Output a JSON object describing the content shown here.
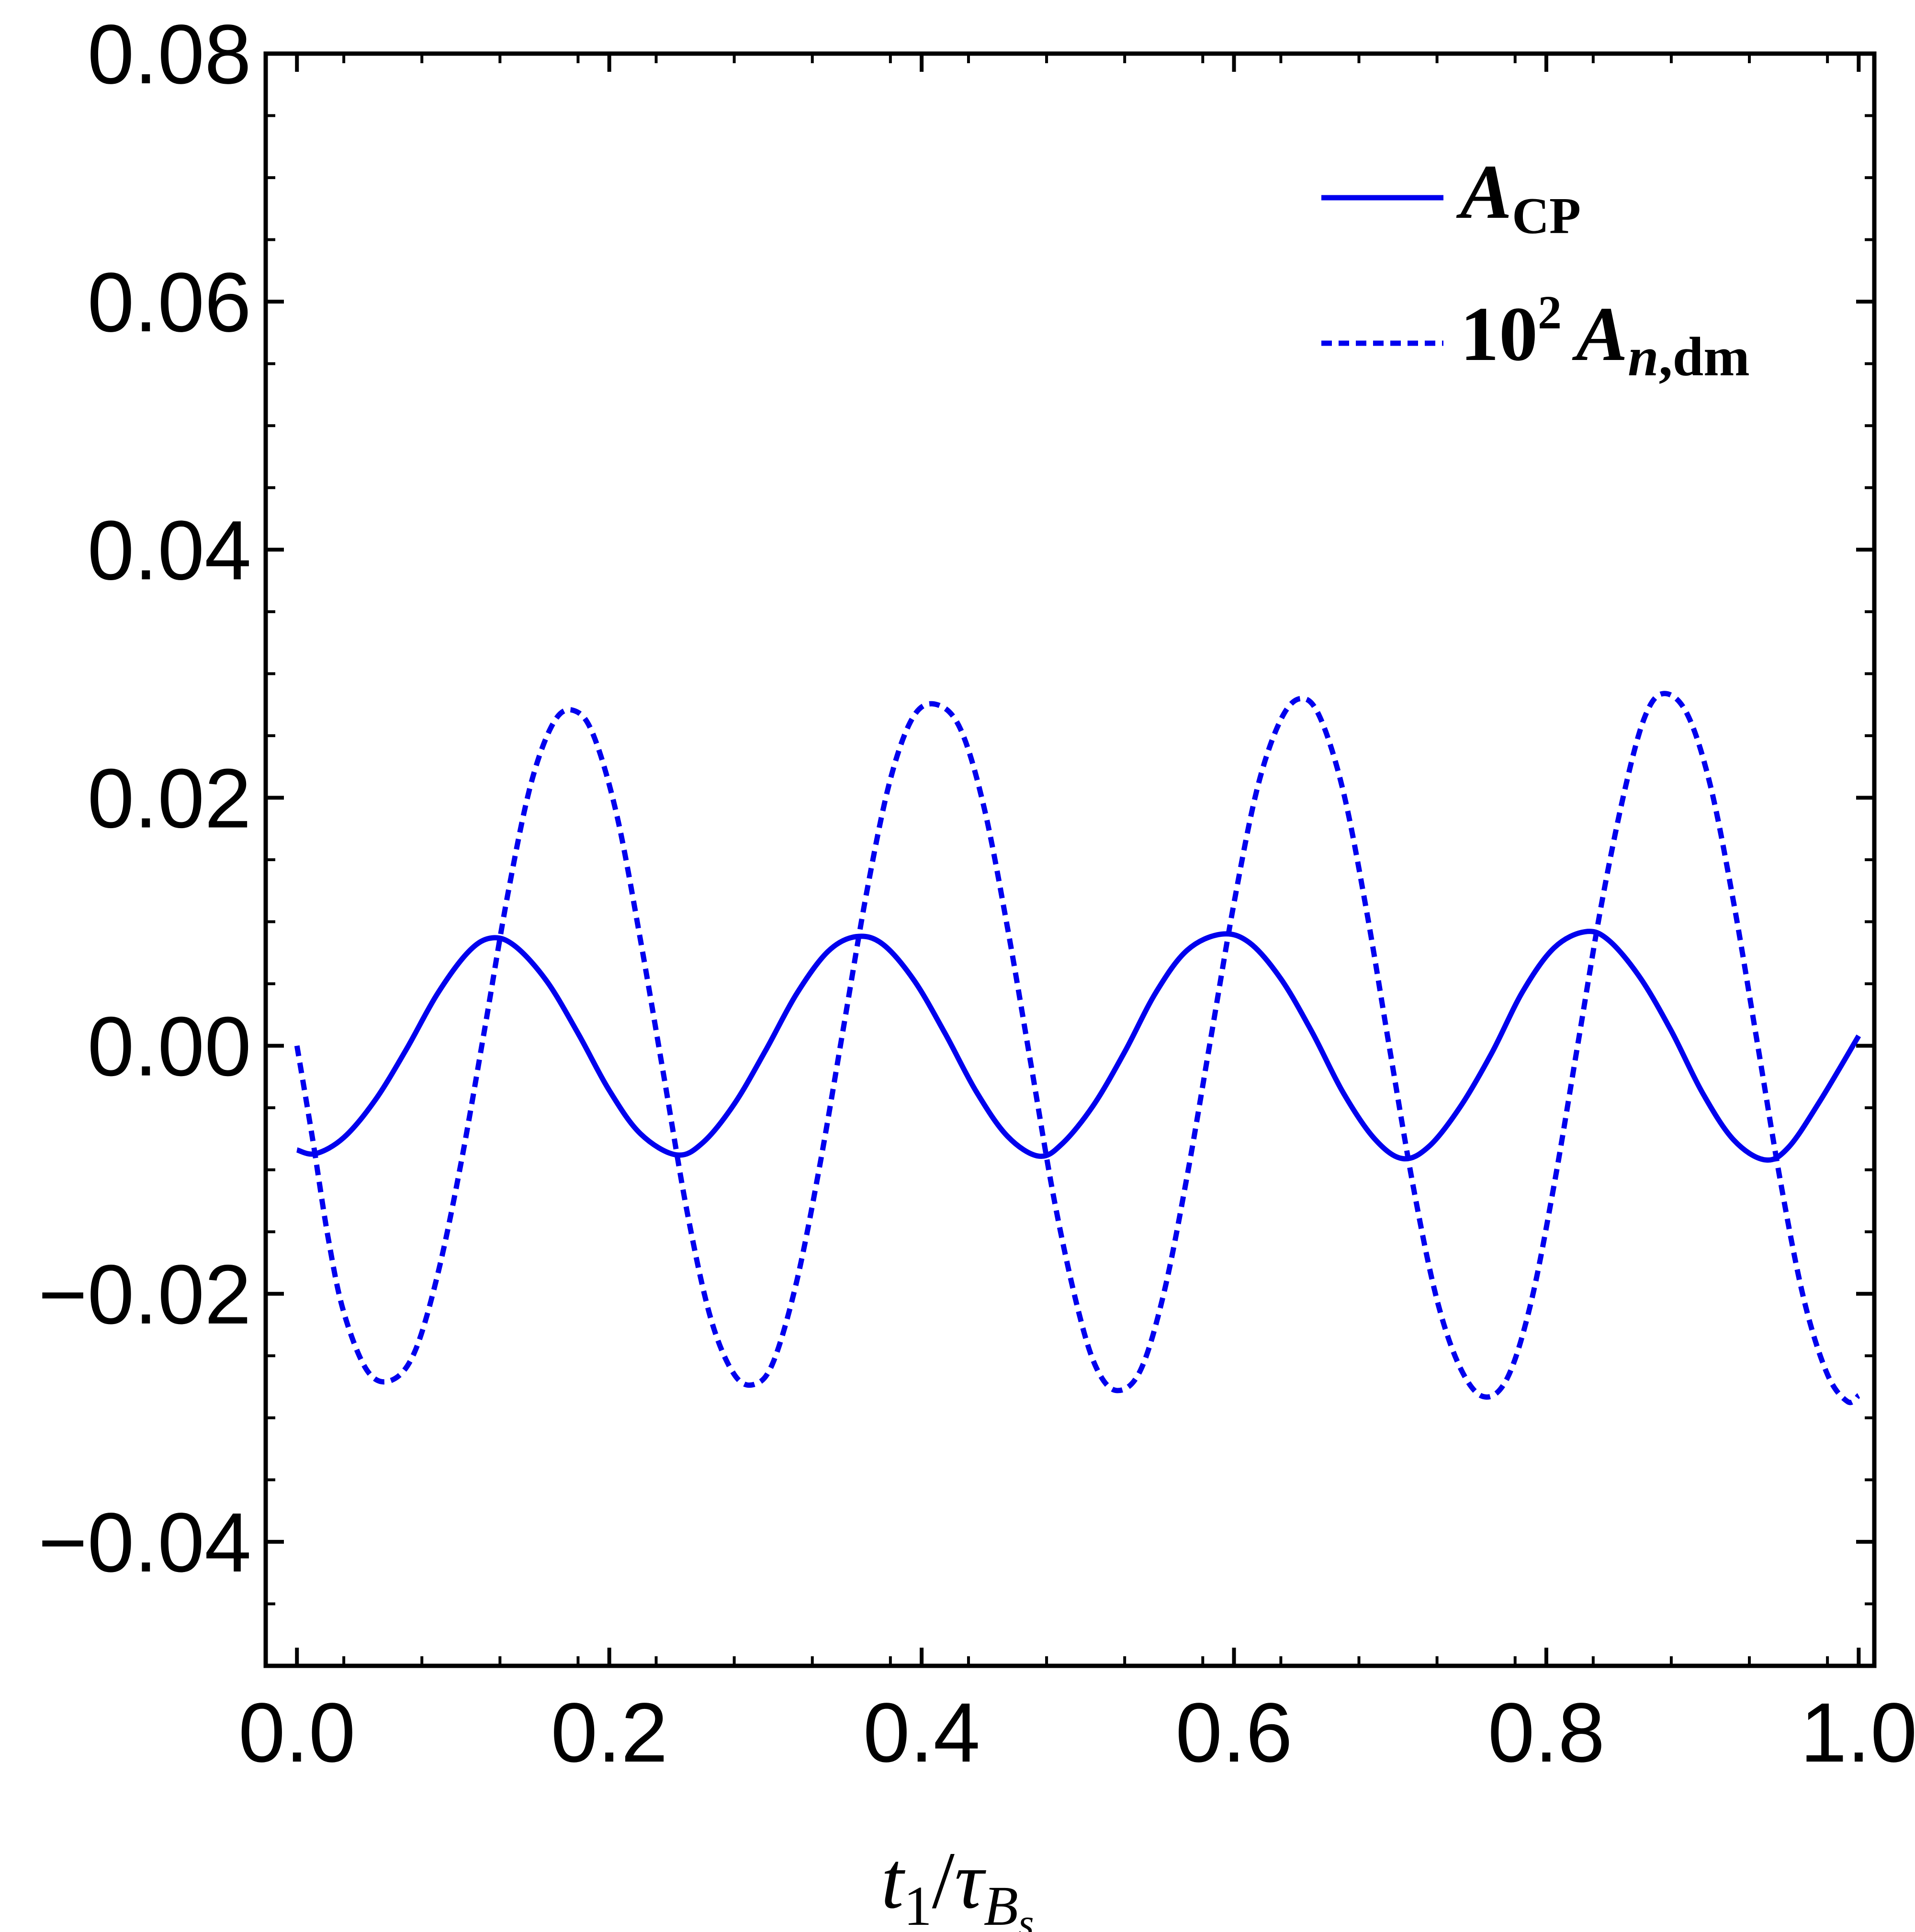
{
  "chart_data": {
    "type": "line",
    "title": "",
    "xlabel": {
      "base": "t",
      "sub1": "1",
      "slash": "/",
      "tau": "τ",
      "B": "B",
      "s": "s"
    },
    "ylabel": "",
    "xlim": [
      -0.02,
      1.01
    ],
    "ylim": [
      -0.05,
      0.08
    ],
    "x_ticks": [
      0.0,
      0.2,
      0.4,
      0.6,
      0.8,
      1.0
    ],
    "x_tick_labels": [
      "0.0",
      "0.2",
      "0.4",
      "0.6",
      "0.8",
      "1.0"
    ],
    "y_ticks": [
      -0.04,
      -0.02,
      0.0,
      0.02,
      0.04,
      0.06,
      0.08
    ],
    "y_tick_labels": [
      "−0.04",
      "−0.02",
      "0.00",
      "0.02",
      "0.04",
      "0.06",
      "0.08"
    ],
    "grid": false,
    "legend_position": "top-right",
    "color": "#0000ee",
    "series": [
      {
        "name": "A_CP",
        "legend": {
          "main": "A",
          "sub": "CP"
        },
        "style": "solid",
        "x": [
          0.0,
          0.012,
          0.03,
          0.05,
          0.07,
          0.09,
          0.11,
          0.125,
          0.14,
          0.16,
          0.18,
          0.2,
          0.22,
          0.243,
          0.26,
          0.28,
          0.3,
          0.32,
          0.34,
          0.358,
          0.375,
          0.395,
          0.415,
          0.435,
          0.455,
          0.475,
          0.49,
          0.51,
          0.53,
          0.55,
          0.57,
          0.592,
          0.61,
          0.63,
          0.65,
          0.67,
          0.69,
          0.708,
          0.725,
          0.745,
          0.765,
          0.785,
          0.805,
          0.825,
          0.84,
          0.86,
          0.88,
          0.9,
          0.92,
          0.94,
          0.955,
          0.975,
          1.0
        ],
        "y": [
          -0.0084,
          -0.0087,
          -0.0074,
          -0.0044,
          -0.0003,
          0.0042,
          0.0076,
          0.0087,
          0.008,
          0.0052,
          0.001,
          -0.0036,
          -0.0071,
          -0.0088,
          -0.0078,
          -0.0047,
          -0.0004,
          0.0042,
          0.0076,
          0.0088,
          0.0082,
          0.0053,
          0.001,
          -0.0037,
          -0.0073,
          -0.0089,
          -0.0079,
          -0.0048,
          -0.0005,
          0.0043,
          0.0077,
          0.009,
          0.0083,
          0.0054,
          0.0011,
          -0.0038,
          -0.0075,
          -0.0091,
          -0.0081,
          -0.0049,
          -0.0006,
          0.0044,
          0.0079,
          0.0092,
          0.0085,
          0.0055,
          0.0012,
          -0.0038,
          -0.0076,
          -0.0092,
          -0.0082,
          -0.0045,
          0.0008
        ]
      },
      {
        "name": "10^2 A_n,dm",
        "legend": {
          "prefix": "10",
          "sup": "2",
          "main": "A",
          "sub_italic": "n",
          "sub_rest": ",dm"
        },
        "style": "dotted",
        "x": [
          0.0,
          0.01,
          0.02,
          0.03,
          0.045,
          0.06,
          0.075,
          0.09,
          0.105,
          0.12,
          0.135,
          0.15,
          0.165,
          0.178,
          0.19,
          0.205,
          0.22,
          0.235,
          0.25,
          0.265,
          0.28,
          0.293,
          0.305,
          0.32,
          0.335,
          0.35,
          0.365,
          0.38,
          0.395,
          0.41,
          0.425,
          0.44,
          0.455,
          0.47,
          0.485,
          0.5,
          0.512,
          0.525,
          0.54,
          0.555,
          0.57,
          0.585,
          0.6,
          0.615,
          0.63,
          0.643,
          0.655,
          0.67,
          0.685,
          0.7,
          0.715,
          0.73,
          0.745,
          0.76,
          0.775,
          0.79,
          0.805,
          0.82,
          0.835,
          0.85,
          0.863,
          0.875,
          0.89,
          0.905,
          0.92,
          0.935,
          0.95,
          0.965,
          0.98,
          0.993,
          1.0
        ],
        "y": [
          0.0,
          -0.0075,
          -0.0155,
          -0.0215,
          -0.0262,
          -0.027,
          -0.0248,
          -0.0185,
          -0.0095,
          0.0012,
          0.0122,
          0.0212,
          0.0262,
          0.027,
          0.025,
          0.0185,
          0.0085,
          -0.0025,
          -0.0135,
          -0.022,
          -0.0265,
          -0.0273,
          -0.0255,
          -0.019,
          -0.0095,
          0.0015,
          0.0125,
          0.0215,
          0.0266,
          0.0275,
          0.0255,
          0.0192,
          0.0095,
          -0.0015,
          -0.0125,
          -0.0212,
          -0.026,
          -0.0278,
          -0.0262,
          -0.02,
          -0.0105,
          0.0005,
          0.0115,
          0.0208,
          0.0263,
          0.028,
          0.0265,
          0.0205,
          0.0108,
          -0.0005,
          -0.0115,
          -0.0205,
          -0.026,
          -0.0283,
          -0.0268,
          -0.0208,
          -0.0112,
          0.0,
          0.0112,
          0.0205,
          0.0265,
          0.0284,
          0.0268,
          0.021,
          0.0115,
          0.0003,
          -0.011,
          -0.0205,
          -0.0265,
          -0.0287,
          -0.0282
        ]
      }
    ]
  }
}
